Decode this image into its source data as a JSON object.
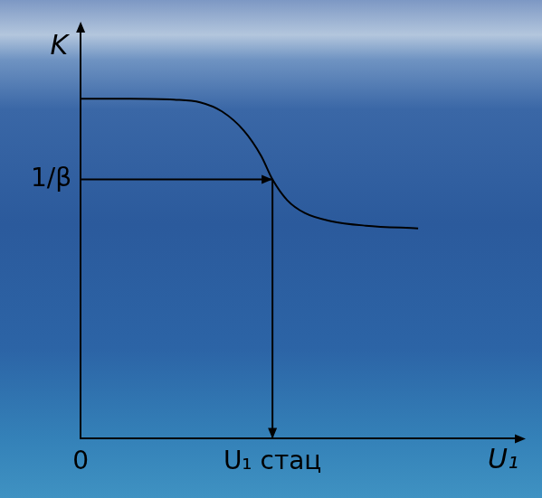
{
  "chart_data": {
    "type": "line",
    "x": [
      0,
      1.14,
      2.14,
      2.74,
      3.24,
      3.74,
      4.14,
      4.4,
      4.74,
      5.14,
      5.74,
      6.54,
      7.74
    ],
    "values": [
      7.5,
      7.5,
      7.48,
      7.42,
      7.22,
      6.8,
      6.24,
      5.72,
      5.26,
      4.98,
      4.8,
      4.7,
      4.64
    ],
    "color": "#000000",
    "x_label": "U₁",
    "y_label": "K",
    "xlim": [
      0,
      10
    ],
    "ylim": [
      0,
      9
    ],
    "xticks": [
      {
        "value": 0,
        "label": "0"
      },
      {
        "value": 4.4,
        "label": "U₁ стац"
      }
    ],
    "yticks": [
      {
        "value": 5.72,
        "label": "1/β"
      }
    ],
    "grid": false,
    "marker": "none",
    "line_style": "solid"
  }
}
